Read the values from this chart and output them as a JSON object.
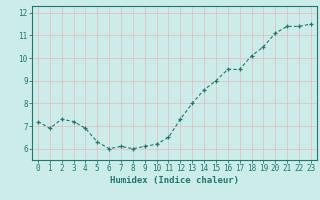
{
  "x": [
    0,
    1,
    2,
    3,
    4,
    5,
    6,
    7,
    8,
    9,
    10,
    11,
    12,
    13,
    14,
    15,
    16,
    17,
    18,
    19,
    20,
    21,
    22,
    23
  ],
  "y": [
    7.2,
    6.9,
    7.3,
    7.2,
    6.9,
    6.3,
    6.0,
    6.1,
    6.0,
    6.1,
    6.2,
    6.5,
    7.3,
    8.0,
    8.6,
    9.0,
    9.5,
    9.5,
    10.1,
    10.5,
    11.1,
    11.4,
    11.4,
    11.5
  ],
  "xlabel": "Humidex (Indice chaleur)",
  "ylim": [
    5.5,
    12.3
  ],
  "xlim": [
    -0.5,
    23.5
  ],
  "yticks": [
    6,
    7,
    8,
    9,
    10,
    11,
    12
  ],
  "xticks": [
    0,
    1,
    2,
    3,
    4,
    5,
    6,
    7,
    8,
    9,
    10,
    11,
    12,
    13,
    14,
    15,
    16,
    17,
    18,
    19,
    20,
    21,
    22,
    23
  ],
  "line_color": "#1a7a6e",
  "bg_color": "#ccecea",
  "grid_color": "#e8b8b8",
  "axis_color": "#1a7a6e",
  "label_color": "#1a7a6e",
  "xlabel_fontsize": 6.5,
  "tick_fontsize": 5.5
}
